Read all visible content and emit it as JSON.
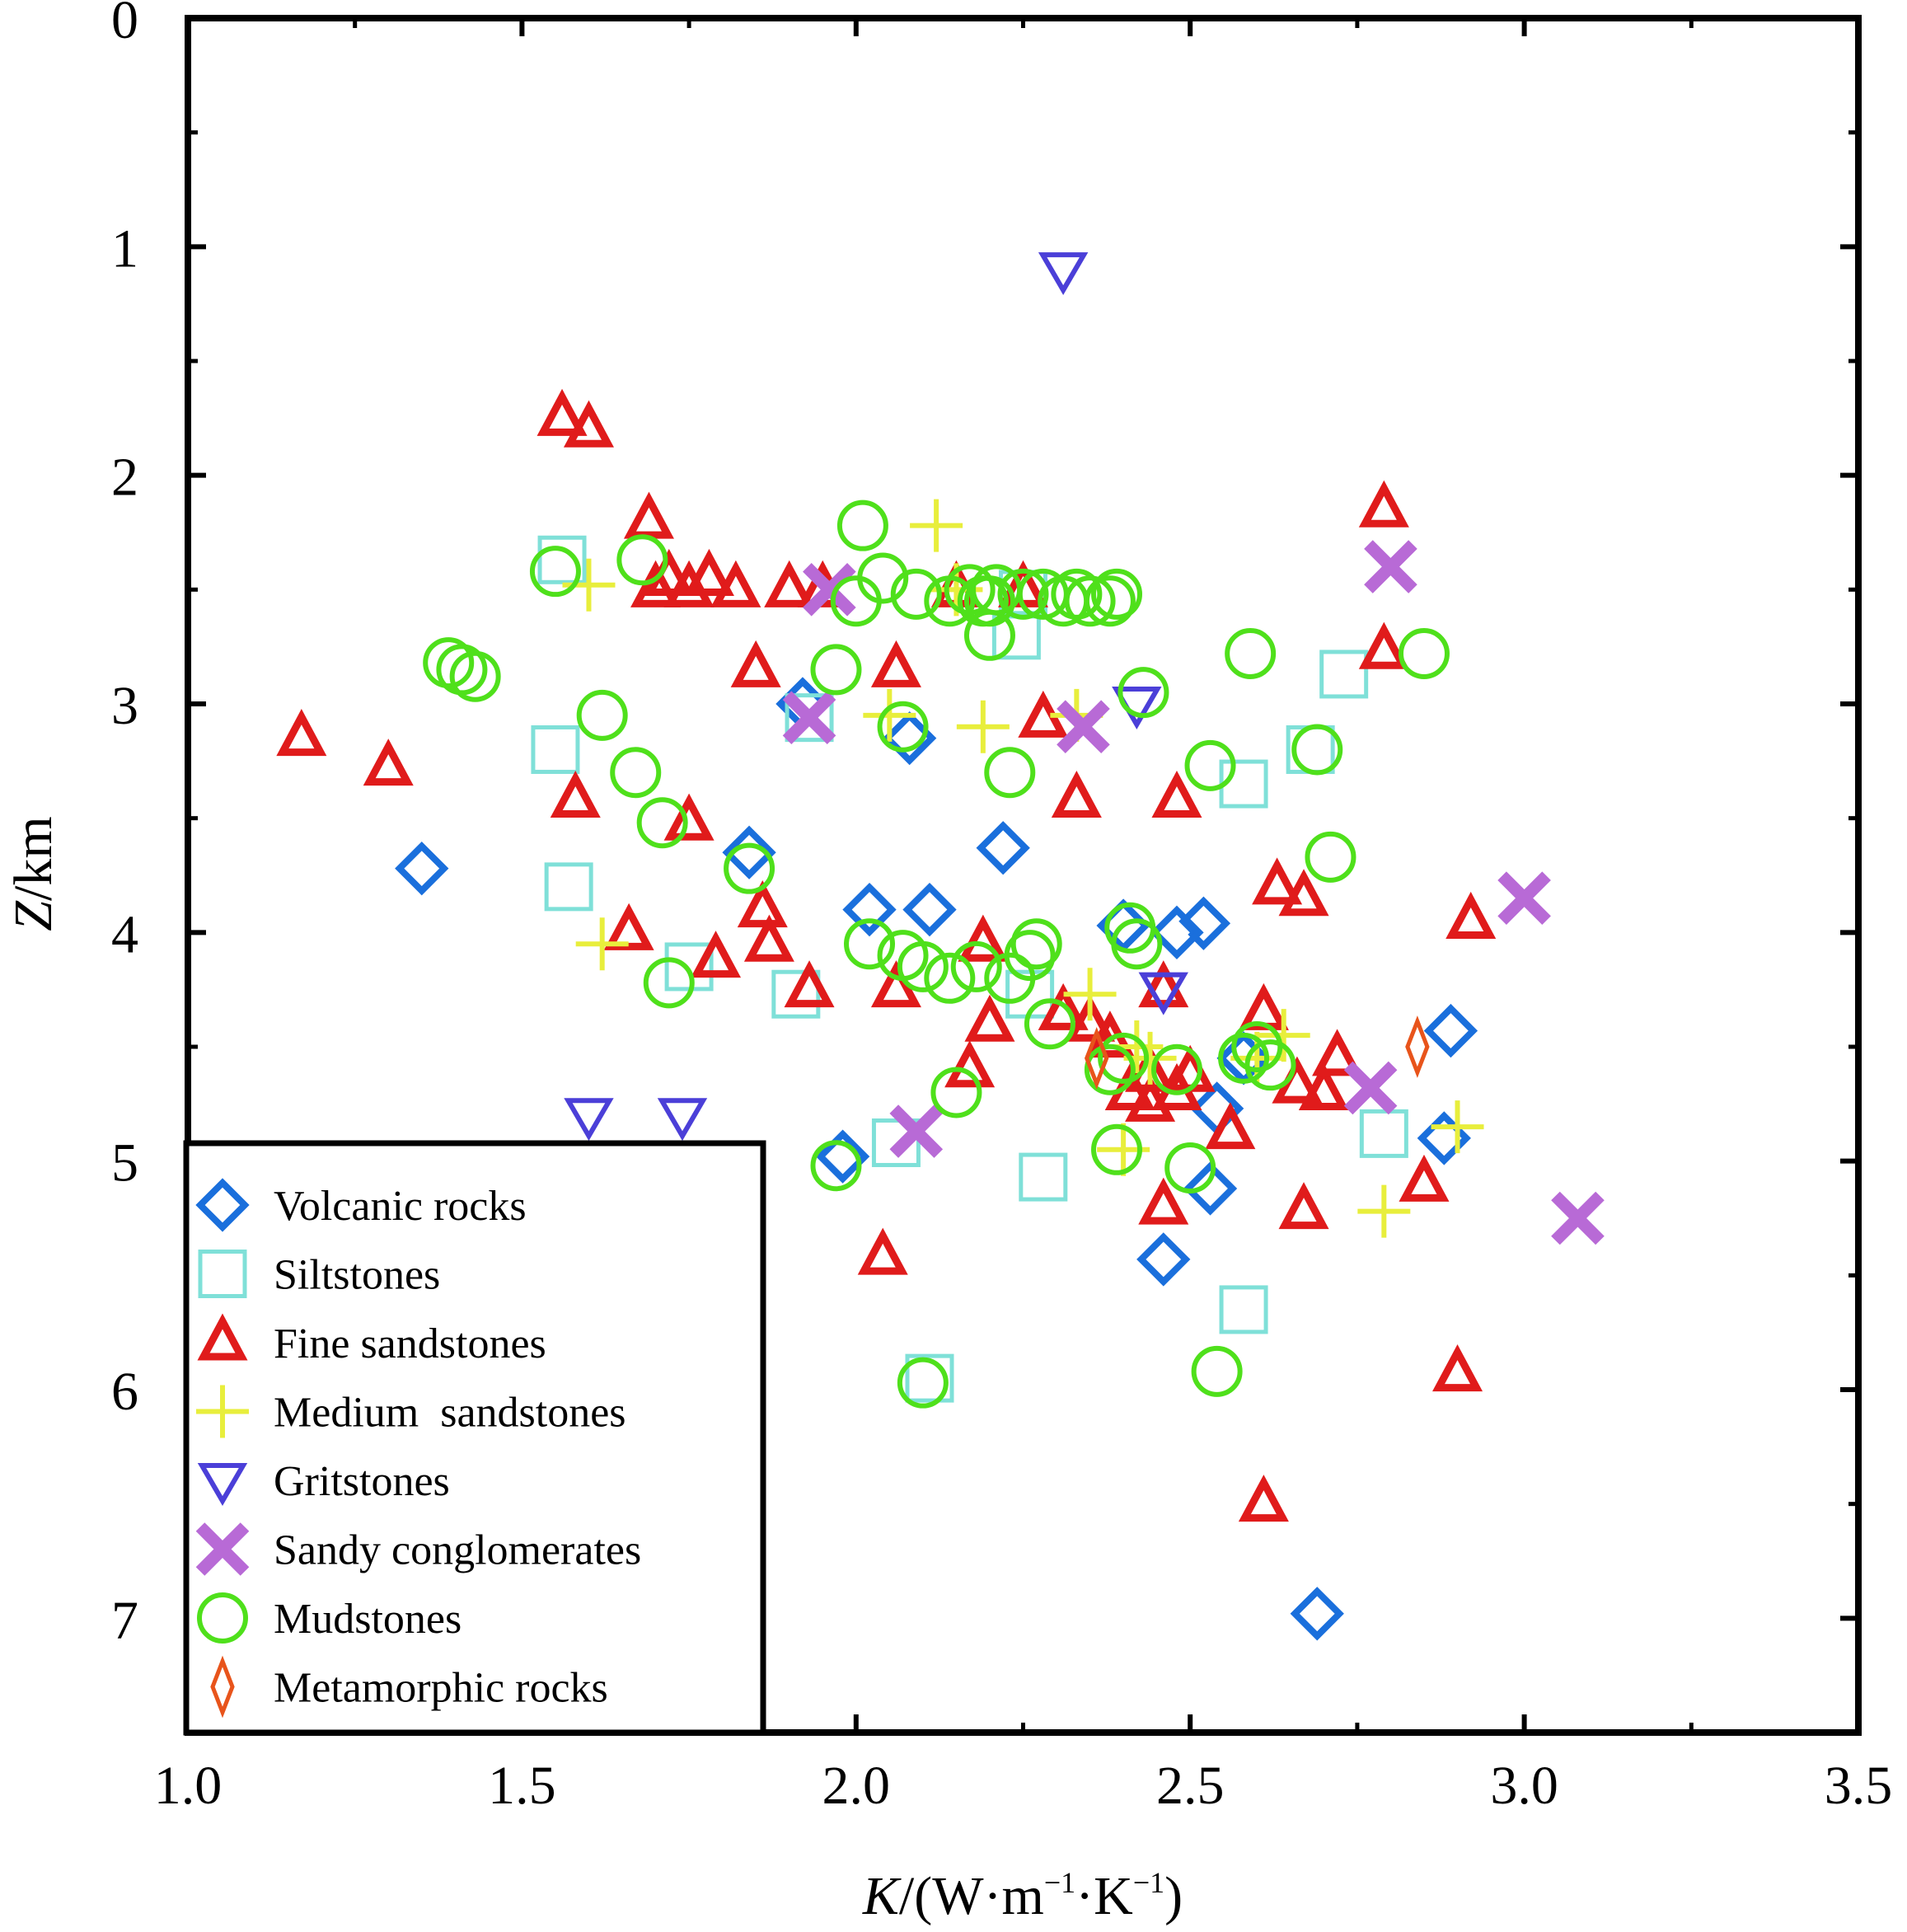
{
  "chart_data": {
    "type": "scatter",
    "title": "",
    "xlabel_italic": "K",
    "xlabel_rest": "/(W·m",
    "xlabel_sup1": "−1",
    "xlabel_mid": "·K",
    "xlabel_sup2": "−1",
    "xlabel_close": ")",
    "ylabel_italic": "Z",
    "ylabel_rest": "/km",
    "xlim": [
      1.0,
      3.5
    ],
    "ylim": [
      0,
      7.5
    ],
    "y_inverted": true,
    "xticks": [
      1.0,
      1.5,
      2.0,
      2.5,
      3.0,
      3.5
    ],
    "xtick_labels": [
      "1.0",
      "1.5",
      "2.0",
      "2.5",
      "3.0",
      "3.5"
    ],
    "yticks": [
      0,
      1,
      2,
      3,
      4,
      5,
      6,
      7
    ],
    "ytick_labels": [
      "0",
      "1",
      "2",
      "3",
      "4",
      "5",
      "6",
      "7"
    ],
    "grid": false,
    "legend_position": "bottom-left",
    "series": [
      {
        "name": "Volcanic rocks",
        "marker": "diamond",
        "color": "#1a6fdc",
        "points": [
          [
            1.35,
            3.72
          ],
          [
            1.84,
            3.65
          ],
          [
            1.92,
            3.0
          ],
          [
            2.02,
            3.9
          ],
          [
            2.11,
            3.9
          ],
          [
            2.22,
            3.63
          ],
          [
            2.08,
            3.15
          ],
          [
            2.4,
            3.97
          ],
          [
            2.52,
            3.96
          ],
          [
            2.48,
            4.0
          ],
          [
            1.98,
            4.98
          ],
          [
            2.58,
            4.55
          ],
          [
            2.54,
            4.77
          ],
          [
            2.53,
            5.12
          ],
          [
            2.46,
            5.43
          ],
          [
            2.89,
            4.43
          ],
          [
            2.88,
            4.9
          ],
          [
            2.69,
            6.98
          ]
        ]
      },
      {
        "name": "Siltstones",
        "marker": "square",
        "color": "#7fe0d8",
        "points": [
          [
            1.56,
            2.37
          ],
          [
            1.55,
            3.2
          ],
          [
            1.57,
            3.8
          ],
          [
            1.75,
            4.15
          ],
          [
            1.93,
            3.06
          ],
          [
            1.91,
            4.27
          ],
          [
            2.24,
            2.7
          ],
          [
            2.25,
            2.52
          ],
          [
            2.26,
            4.27
          ],
          [
            2.58,
            3.35
          ],
          [
            2.68,
            3.2
          ],
          [
            2.73,
            2.87
          ],
          [
            2.79,
            4.88
          ],
          [
            2.06,
            4.92
          ],
          [
            2.28,
            5.07
          ],
          [
            2.58,
            5.65
          ],
          [
            2.11,
            5.95
          ]
        ]
      },
      {
        "name": "Fine sandstones",
        "marker": "triangle-up",
        "color": "#e01b1b",
        "points": [
          [
            1.56,
            1.75
          ],
          [
            1.6,
            1.8
          ],
          [
            1.69,
            2.2
          ],
          [
            1.7,
            2.5
          ],
          [
            1.72,
            2.45
          ],
          [
            1.75,
            2.5
          ],
          [
            1.78,
            2.45
          ],
          [
            1.82,
            2.5
          ],
          [
            1.9,
            2.5
          ],
          [
            1.95,
            2.5
          ],
          [
            2.06,
            2.85
          ],
          [
            1.85,
            2.85
          ],
          [
            1.17,
            3.15
          ],
          [
            1.3,
            3.28
          ],
          [
            1.58,
            3.42
          ],
          [
            1.75,
            3.52
          ],
          [
            2.15,
            2.5
          ],
          [
            2.25,
            2.5
          ],
          [
            2.28,
            3.07
          ],
          [
            2.33,
            3.42
          ],
          [
            2.48,
            3.42
          ],
          [
            2.63,
            3.8
          ],
          [
            2.67,
            3.85
          ],
          [
            2.79,
            2.15
          ],
          [
            2.79,
            2.77
          ],
          [
            2.92,
            3.95
          ],
          [
            1.66,
            4.0
          ],
          [
            1.79,
            4.12
          ],
          [
            1.86,
            3.9
          ],
          [
            1.87,
            4.05
          ],
          [
            1.93,
            4.25
          ],
          [
            2.06,
            4.25
          ],
          [
            2.19,
            4.05
          ],
          [
            2.2,
            4.4
          ],
          [
            2.17,
            4.6
          ],
          [
            2.31,
            4.35
          ],
          [
            2.35,
            4.4
          ],
          [
            2.38,
            4.47
          ],
          [
            2.46,
            4.25
          ],
          [
            2.44,
            4.62
          ],
          [
            2.41,
            4.7
          ],
          [
            2.44,
            4.75
          ],
          [
            2.48,
            4.7
          ],
          [
            2.5,
            4.62
          ],
          [
            2.56,
            4.87
          ],
          [
            2.61,
            4.35
          ],
          [
            2.66,
            4.67
          ],
          [
            2.7,
            4.7
          ],
          [
            2.72,
            4.55
          ],
          [
            2.85,
            5.1
          ],
          [
            2.46,
            5.2
          ],
          [
            2.67,
            5.22
          ],
          [
            2.04,
            5.42
          ],
          [
            2.9,
            5.93
          ],
          [
            2.61,
            6.5
          ]
        ]
      },
      {
        "name": "Medium  sandstones",
        "marker": "plus",
        "color": "#e8ee3c",
        "points": [
          [
            1.6,
            2.48
          ],
          [
            2.12,
            2.22
          ],
          [
            2.05,
            3.05
          ],
          [
            2.19,
            3.1
          ],
          [
            2.33,
            3.05
          ],
          [
            2.15,
            2.5
          ],
          [
            2.35,
            4.27
          ],
          [
            1.62,
            4.05
          ],
          [
            2.42,
            4.5
          ],
          [
            2.44,
            4.55
          ],
          [
            2.4,
            4.95
          ],
          [
            2.64,
            4.45
          ],
          [
            2.6,
            4.55
          ],
          [
            2.79,
            5.22
          ],
          [
            2.9,
            4.85
          ]
        ]
      },
      {
        "name": "Gritstones",
        "marker": "triangle-down",
        "color": "#4b3fd8",
        "points": [
          [
            2.31,
            1.1
          ],
          [
            2.42,
            3.0
          ],
          [
            1.6,
            4.8
          ],
          [
            1.74,
            4.8
          ],
          [
            2.46,
            4.25
          ]
        ]
      },
      {
        "name": "Sandy conglomerates",
        "marker": "cross",
        "color": "#b86ad6",
        "points": [
          [
            1.96,
            2.5
          ],
          [
            1.93,
            3.06
          ],
          [
            2.34,
            3.1
          ],
          [
            2.8,
            2.4
          ],
          [
            3.0,
            3.85
          ],
          [
            2.09,
            4.87
          ],
          [
            2.77,
            4.68
          ],
          [
            3.08,
            5.25
          ]
        ]
      },
      {
        "name": "Mudstones",
        "marker": "circle",
        "color": "#4fe01b",
        "points": [
          [
            1.55,
            2.42
          ],
          [
            1.68,
            2.37
          ],
          [
            1.39,
            2.82
          ],
          [
            1.41,
            2.85
          ],
          [
            1.43,
            2.88
          ],
          [
            1.62,
            3.05
          ],
          [
            1.67,
            3.3
          ],
          [
            1.71,
            3.52
          ],
          [
            1.84,
            3.72
          ],
          [
            1.97,
            2.85
          ],
          [
            2.01,
            2.22
          ],
          [
            2.0,
            2.55
          ],
          [
            2.04,
            2.45
          ],
          [
            2.09,
            2.52
          ],
          [
            2.14,
            2.55
          ],
          [
            2.17,
            2.5
          ],
          [
            2.19,
            2.55
          ],
          [
            2.2,
            2.55
          ],
          [
            2.21,
            2.5
          ],
          [
            2.25,
            2.52
          ],
          [
            2.28,
            2.52
          ],
          [
            2.31,
            2.55
          ],
          [
            2.33,
            2.52
          ],
          [
            2.35,
            2.55
          ],
          [
            2.38,
            2.55
          ],
          [
            2.39,
            2.52
          ],
          [
            2.2,
            2.7
          ],
          [
            2.07,
            3.1
          ],
          [
            2.23,
            3.3
          ],
          [
            2.43,
            2.95
          ],
          [
            2.53,
            3.27
          ],
          [
            2.59,
            2.78
          ],
          [
            2.69,
            3.2
          ],
          [
            2.71,
            3.67
          ],
          [
            2.85,
            2.78
          ],
          [
            1.72,
            4.22
          ],
          [
            2.02,
            4.05
          ],
          [
            2.07,
            4.1
          ],
          [
            2.1,
            4.15
          ],
          [
            2.14,
            4.2
          ],
          [
            2.18,
            4.15
          ],
          [
            2.23,
            4.2
          ],
          [
            2.27,
            4.05
          ],
          [
            2.26,
            4.1
          ],
          [
            2.29,
            4.4
          ],
          [
            2.41,
            3.98
          ],
          [
            2.42,
            4.05
          ],
          [
            2.38,
            4.6
          ],
          [
            2.4,
            4.55
          ],
          [
            2.48,
            4.6
          ],
          [
            2.58,
            4.55
          ],
          [
            2.6,
            4.5
          ],
          [
            2.62,
            4.58
          ],
          [
            2.15,
            4.7
          ],
          [
            2.39,
            4.95
          ],
          [
            2.5,
            5.03
          ],
          [
            1.97,
            5.02
          ],
          [
            2.1,
            5.97
          ],
          [
            2.54,
            5.92
          ]
        ]
      },
      {
        "name": "Metamorphic rocks",
        "marker": "thin-diamond",
        "color": "#e8541b",
        "points": [
          [
            2.36,
            4.55
          ],
          [
            2.84,
            4.5
          ]
        ]
      }
    ]
  }
}
